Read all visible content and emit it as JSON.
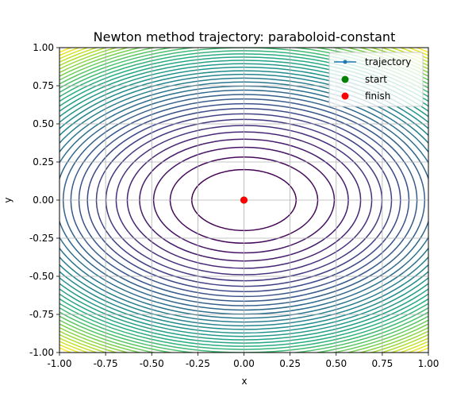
{
  "chart_data": {
    "type": "line",
    "title": "Newton method trajectory: paraboloid-constant",
    "xlabel": "x",
    "ylabel": "y",
    "xlim": [
      -1.0,
      1.0
    ],
    "ylim": [
      -1.0,
      1.0
    ],
    "xticks": [
      "-1.00",
      "-0.75",
      "-0.50",
      "-0.25",
      "0.00",
      "0.25",
      "0.50",
      "0.75",
      "1.00"
    ],
    "yticks": [
      "-1.00",
      "-0.75",
      "-0.50",
      "-0.25",
      "0.00",
      "0.25",
      "0.50",
      "0.75",
      "1.00"
    ],
    "grid": true,
    "legend_position": "top-right",
    "contours": {
      "function": "x^2 + 2*y^2",
      "levels": [
        0.08,
        0.16,
        0.24,
        0.32,
        0.4,
        0.48,
        0.56,
        0.64,
        0.72,
        0.8,
        0.88,
        0.96,
        1.04,
        1.12,
        1.2,
        1.28,
        1.36,
        1.44,
        1.52,
        1.6,
        1.68,
        1.76,
        1.84,
        1.92,
        2.0,
        2.08,
        2.16,
        2.24,
        2.32,
        2.4,
        2.48,
        2.56,
        2.64,
        2.72,
        2.8,
        2.88
      ],
      "colormap": "viridis"
    },
    "series": [
      {
        "name": "trajectory",
        "kind": "line",
        "color": "#1f77b4",
        "x": [
          0.0,
          0.0
        ],
        "y": [
          0.0,
          0.0
        ]
      },
      {
        "name": "start",
        "kind": "scatter",
        "color": "#008000",
        "x": [
          0.0
        ],
        "y": [
          0.0
        ]
      },
      {
        "name": "finish",
        "kind": "scatter",
        "color": "#ff0000",
        "x": [
          0.0
        ],
        "y": [
          0.0
        ]
      }
    ]
  }
}
